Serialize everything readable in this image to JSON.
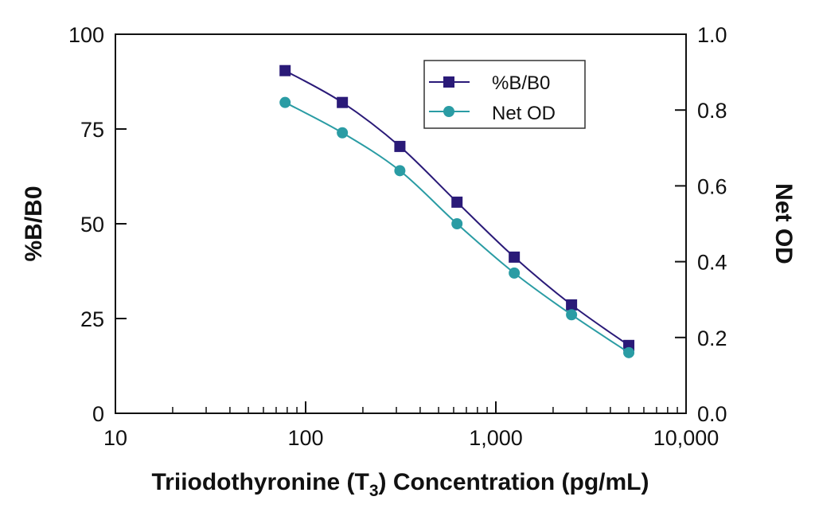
{
  "chart_data": {
    "type": "line",
    "title": "",
    "xlabel": "Triiodothyronine (T",
    "xlabel_sub": "3",
    "xlabel_tail": ") Concentration (pg/mL)",
    "ylabel": "%B/B0",
    "y2label": "Net OD",
    "x_scale": "log",
    "xlim": [
      10,
      10000
    ],
    "ylim": [
      0,
      100
    ],
    "y2lim": [
      0,
      1.0
    ],
    "x_ticks": [
      10,
      100,
      1000,
      10000
    ],
    "x_tick_labels": [
      "10",
      "100",
      "1,000",
      "10,000"
    ],
    "y_ticks": [
      0,
      25,
      50,
      75,
      100
    ],
    "y_tick_labels": [
      "0",
      "25",
      "50",
      "75",
      "100"
    ],
    "y2_ticks": [
      0,
      0.2,
      0.4,
      0.6,
      0.8,
      1.0
    ],
    "y2_tick_labels": [
      "0.0",
      "0.2",
      "0.4",
      "0.6",
      "0.8",
      "1.0"
    ],
    "grid": false,
    "legend_position": "top-right",
    "x": [
      78,
      156,
      313,
      625,
      1250,
      2500,
      5000
    ],
    "series": [
      {
        "name": "%B/B0",
        "axis": "left",
        "marker": "square",
        "color": "#2a1a78",
        "values": [
          90.4,
          82.0,
          70.4,
          55.7,
          41.2,
          28.6,
          17.9
        ]
      },
      {
        "name": "Net OD",
        "axis": "right",
        "marker": "circle",
        "color": "#2a9ca4",
        "values": [
          0.82,
          0.74,
          0.64,
          0.5,
          0.37,
          0.26,
          0.16
        ]
      }
    ]
  }
}
